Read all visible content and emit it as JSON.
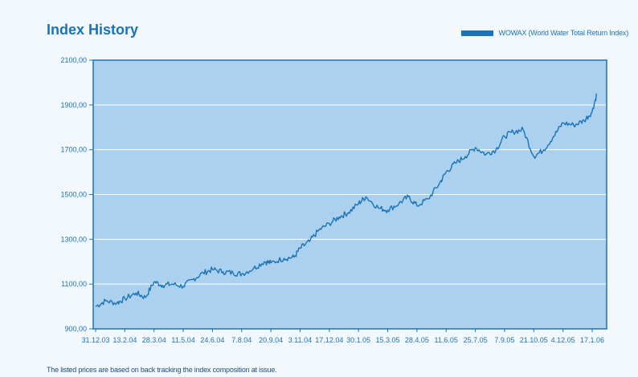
{
  "title": "Index History",
  "legend": {
    "label": "WOWAX (World Water Total Return Index)"
  },
  "footnote": "The listed prices are based on back tracking the index composition at issue.",
  "colors": {
    "plot_bg": "#acd1ee",
    "line": "#1a73b8",
    "axis": "#1a73b8",
    "grid": "#ffffff",
    "text": "#1a73b8"
  },
  "chart_data": {
    "type": "line",
    "title": "Index History",
    "xlabel": "",
    "ylabel": "",
    "ylim": [
      900,
      2100
    ],
    "grid": true,
    "legend_position": "top-right",
    "y_ticks": [
      "900,00",
      "1100,00",
      "1300,00",
      "1500,00",
      "1700,00",
      "1900,00",
      "2100,00"
    ],
    "x_ticks": [
      "31.12.03",
      "13.2.04",
      "28.3.04",
      "11.5.04",
      "24.6.04",
      "7.8.04",
      "20.9.04",
      "3.11.04",
      "17.12.04",
      "30.1.05",
      "15.3.05",
      "28.4.05",
      "11.6.05",
      "25.7.05",
      "7.9.05",
      "21.10.05",
      "4.12.05",
      "17.1.06"
    ],
    "series": [
      {
        "name": "WOWAX (World Water Total Return Index)",
        "x": [
          "31.12.03",
          "15.1.04",
          "1.2.04",
          "13.2.04",
          "1.3.04",
          "15.3.04",
          "28.3.04",
          "10.4.04",
          "25.4.04",
          "11.5.04",
          "25.5.04",
          "10.6.04",
          "24.6.04",
          "10.7.04",
          "25.7.04",
          "7.8.04",
          "25.8.04",
          "10.9.04",
          "20.9.04",
          "10.10.04",
          "25.10.04",
          "3.11.04",
          "17.11.04",
          "1.12.04",
          "17.12.04",
          "1.1.05",
          "15.1.05",
          "30.1.05",
          "10.2.05",
          "1.3.05",
          "15.3.05",
          "1.4.05",
          "15.4.05",
          "28.4.05",
          "15.5.05",
          "1.6.05",
          "11.6.05",
          "25.6.05",
          "10.7.05",
          "25.7.05",
          "10.8.05",
          "25.8.05",
          "7.9.05",
          "20.9.05",
          "5.10.05",
          "21.10.05",
          "5.11.05",
          "20.11.05",
          "4.12.05",
          "20.12.05",
          "5.1.06",
          "17.1.06",
          "24.1.06"
        ],
        "values": [
          1000,
          1025,
          1015,
          1035,
          1060,
          1040,
          1110,
          1095,
          1100,
          1090,
          1120,
          1150,
          1165,
          1155,
          1150,
          1145,
          1170,
          1200,
          1195,
          1215,
          1220,
          1260,
          1290,
          1340,
          1370,
          1400,
          1420,
          1460,
          1490,
          1440,
          1430,
          1460,
          1490,
          1450,
          1480,
          1550,
          1600,
          1640,
          1670,
          1710,
          1680,
          1700,
          1760,
          1780,
          1790,
          1670,
          1700,
          1760,
          1820,
          1810,
          1830,
          1870,
          1950
        ]
      }
    ]
  }
}
